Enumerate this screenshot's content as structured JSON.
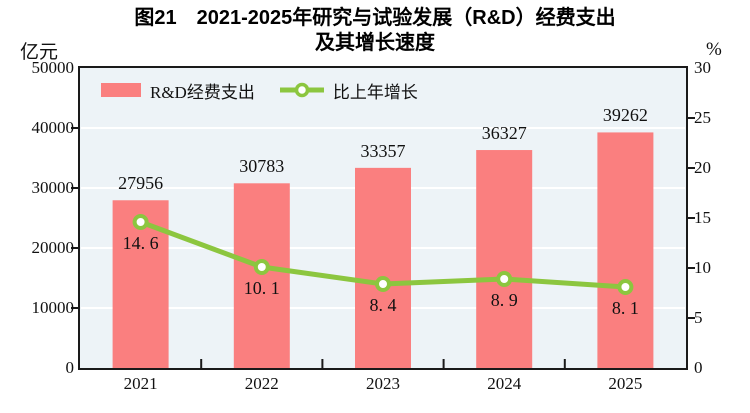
{
  "title": {
    "line1": "图21　2021-2025年研究与试验发展（R&D）经费支出",
    "line2": "及其增长速度"
  },
  "axes": {
    "left_unit": "亿元",
    "right_unit": "%"
  },
  "legend": {
    "bar": {
      "label": "R&D经费支出"
    },
    "line": {
      "label": "比上年增长"
    }
  },
  "colors": {
    "bar": "#fa7f7f",
    "line": "#8cc63f",
    "marker_fill": "#ffffff",
    "plot_bg": "#edf3f7",
    "gridline": "#ffffff",
    "frame": "#1a1a1a",
    "text": "#111111"
  },
  "chart_data": {
    "type": "bar",
    "title": "图21 2021-2025年研究与试验发展（R&D）经费支出及其增长速度",
    "categories": [
      "2021",
      "2022",
      "2023",
      "2024",
      "2025"
    ],
    "series": [
      {
        "name": "R&D经费支出",
        "type": "bar",
        "yaxis": "left",
        "values": [
          27956,
          30783,
          33357,
          36327,
          39262
        ],
        "data_labels": [
          "27956",
          "30783",
          "33357",
          "36327",
          "39262"
        ],
        "color": "#fa7f7f"
      },
      {
        "name": "比上年增长",
        "type": "line",
        "yaxis": "right",
        "marker": "open-circle",
        "values": [
          14.6,
          10.1,
          8.4,
          8.9,
          8.1
        ],
        "data_labels": [
          "14. 6",
          "10. 1",
          "8. 4",
          "8. 9",
          "8. 1"
        ],
        "color": "#8cc63f"
      }
    ],
    "left_axis": {
      "label": "亿元",
      "min": 0,
      "max": 50000,
      "step": 10000
    },
    "right_axis": {
      "label": "%",
      "min": 0,
      "max": 30,
      "step": 5
    },
    "grid": true,
    "grid_lines_at_left_axis_steps": true,
    "legend_position": "top-left-inside",
    "plot_bg": "#edf3f7"
  }
}
